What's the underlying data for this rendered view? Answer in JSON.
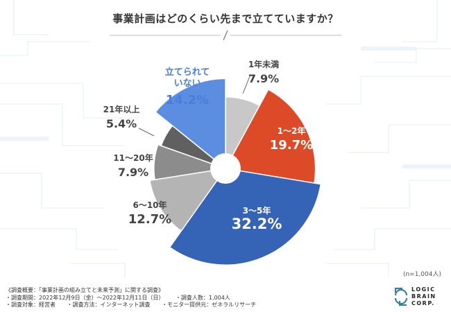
{
  "chart_data": {
    "type": "pie",
    "title": "事業計画はどのくらい先まで立てていますか？",
    "sample_note": "(n=1,004人)",
    "slices": [
      {
        "label": "1年未満",
        "value": 7.9,
        "display": "7.9%",
        "color": "#c8c8c8"
      },
      {
        "label": "1〜2年",
        "value": 19.7,
        "display": "19.7%",
        "color": "#dc4a28"
      },
      {
        "label": "3〜5年",
        "value": 32.2,
        "display": "32.2%",
        "color": "#3563b5"
      },
      {
        "label": "6〜10年",
        "value": 12.7,
        "display": "12.7%",
        "color": "#b4b4b4"
      },
      {
        "label": "11〜20年",
        "value": 7.9,
        "display": "7.9%",
        "color": "#8c8c8c"
      },
      {
        "label": "21年以上",
        "value": 5.4,
        "display": "5.4%",
        "color": "#606060"
      },
      {
        "label": "立てられていない",
        "value": 14.2,
        "display": "14.2%",
        "color": "#5b8de0"
      }
    ]
  },
  "survey": {
    "overview": "《調査概要：「事業計画の組み立てと未来予測」に関する調査》",
    "period": "・調査期間：2022年12月9日（金）〜2022年12月11日（日）",
    "respondents": "・調査人数：1,004人",
    "target": "・調査対象：経営者",
    "method": "・調査方法：インターネット調査",
    "provider": "・モニター提供元：ゼネラルリサーチ"
  },
  "logo": {
    "line1": "LOGIC",
    "line2": "BRAIN",
    "line3": "CORP."
  }
}
